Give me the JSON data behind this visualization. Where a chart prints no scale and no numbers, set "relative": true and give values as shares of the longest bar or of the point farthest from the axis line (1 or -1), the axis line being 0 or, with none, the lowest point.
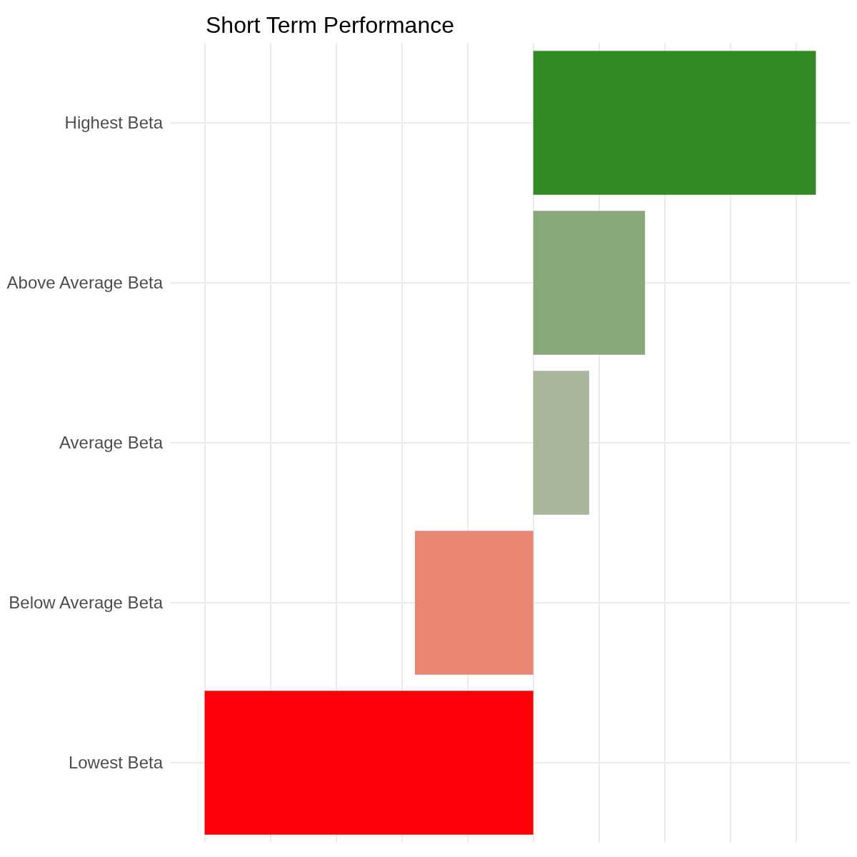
{
  "chart_data": {
    "type": "bar",
    "title": "Short Term Performance",
    "orientation": "horizontal",
    "relative": true,
    "categories": [
      "Highest Beta",
      "Above Average Beta",
      "Average Beta",
      "Below Average Beta",
      "Lowest Beta"
    ],
    "values": [
      0.86,
      0.34,
      0.17,
      -0.36,
      -1
    ],
    "colors": [
      "#338a24",
      "#88a97a",
      "#a7b59b",
      "#e88673",
      "#fb0007"
    ],
    "grid": true,
    "tick_labels": "y"
  }
}
